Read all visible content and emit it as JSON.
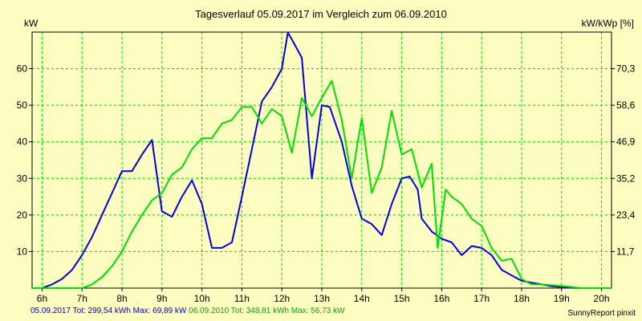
{
  "chart_data": {
    "type": "line",
    "title": "Tagesverlauf 05.09.2017 im Vergleich zum 06.09.2010",
    "ylabel_left": "kW",
    "ylabel_right": "kW/kWp [%]",
    "x_tick_labels": [
      "6h",
      "7h",
      "8h",
      "9h",
      "10h",
      "11h",
      "12h",
      "13h",
      "14h",
      "15h",
      "16h",
      "17h",
      "18h",
      "19h",
      "20h"
    ],
    "x_ticks": [
      6,
      7,
      8,
      9,
      10,
      11,
      12,
      13,
      14,
      15,
      16,
      17,
      18,
      19,
      20
    ],
    "xlim": [
      5.75,
      20.25
    ],
    "ylim": [
      0,
      70
    ],
    "y_ticks": [
      10,
      20,
      30,
      40,
      50,
      60
    ],
    "y_tick_labels": [
      "10",
      "20",
      "30",
      "40",
      "50",
      "60"
    ],
    "y2_ticks": [
      10,
      20,
      30,
      40,
      50,
      60
    ],
    "y2_tick_labels": [
      "11,7",
      "23,4",
      "35,2",
      "46,9",
      "58,6",
      "70,3"
    ],
    "grid": true,
    "series": [
      {
        "name": "05.09.2017",
        "color": "#0000dd",
        "x": [
          5.75,
          6.0,
          6.25,
          6.5,
          6.75,
          7.0,
          7.25,
          7.5,
          7.75,
          8.0,
          8.25,
          8.5,
          8.75,
          9.0,
          9.25,
          9.5,
          9.75,
          10.0,
          10.25,
          10.5,
          10.75,
          11.0,
          11.25,
          11.5,
          11.75,
          12.0,
          12.15,
          12.25,
          12.5,
          12.75,
          13.0,
          13.2,
          13.5,
          13.75,
          14.0,
          14.25,
          14.5,
          14.75,
          15.0,
          15.2,
          15.4,
          15.5,
          15.75,
          16.0,
          16.25,
          16.5,
          16.75,
          17.0,
          17.25,
          17.5,
          17.75,
          18.0,
          18.25,
          18.5,
          18.75,
          19.0,
          19.25,
          19.5,
          19.75,
          20.0,
          20.25
        ],
        "values": [
          0,
          0,
          1,
          2.5,
          5,
          9,
          14,
          20,
          26,
          32,
          32,
          36.5,
          40.5,
          21,
          19.5,
          25,
          29.5,
          23,
          11,
          11,
          12.5,
          25,
          38,
          51,
          55,
          60,
          69.9,
          68,
          63,
          30,
          50,
          49.5,
          40,
          28,
          19,
          17.5,
          14.5,
          23,
          30,
          30.5,
          27,
          19,
          15.5,
          13.5,
          12.5,
          9,
          11.5,
          11,
          9,
          5,
          3.5,
          2,
          1.5,
          1,
          0.5,
          0.3,
          0.1,
          0,
          0,
          0,
          0
        ]
      },
      {
        "name": "06.09.2010",
        "color": "#00dd00",
        "x": [
          5.75,
          6.25,
          6.5,
          6.75,
          7.0,
          7.25,
          7.5,
          7.75,
          8.0,
          8.25,
          8.5,
          8.75,
          9.0,
          9.25,
          9.5,
          9.75,
          10.0,
          10.25,
          10.5,
          10.75,
          11.0,
          11.25,
          11.5,
          11.75,
          12.0,
          12.25,
          12.5,
          12.75,
          13.0,
          13.25,
          13.5,
          13.75,
          14.0,
          14.25,
          14.5,
          14.75,
          15.0,
          15.25,
          15.5,
          15.75,
          15.9,
          16.1,
          16.25,
          16.5,
          16.75,
          17.0,
          17.25,
          17.5,
          17.75,
          18.0,
          18.25,
          18.5,
          18.75,
          19.0,
          19.25,
          19.5,
          19.75,
          20.0,
          20.25
        ],
        "values": [
          0,
          0,
          0,
          0,
          0,
          1,
          3,
          6,
          10,
          15.5,
          20,
          24,
          26,
          31,
          33,
          38,
          41,
          41,
          45,
          46,
          49.5,
          49.5,
          45,
          49,
          47,
          37,
          52,
          47,
          52,
          56.7,
          46,
          30,
          46.5,
          26,
          33,
          48.5,
          36.5,
          38,
          27.5,
          34,
          11,
          27,
          25,
          23,
          19,
          17,
          11,
          7.5,
          8,
          2.5,
          1,
          1,
          0.8,
          0.6,
          0.3,
          0,
          0,
          0,
          0
        ]
      }
    ]
  },
  "footer": {
    "blue_text": "05.09.2017 Tot: 299,54 kWh Max: 69,89 kW",
    "green_text": "06.09.2010 Tot: 348,81 kWh Max: 56,73 kW",
    "credit": "SunnyReport pinxit"
  },
  "colors": {
    "background": "#fdfdc2",
    "grid": "#00cc00",
    "axis": "#000000",
    "footer_blue": "#0000cc",
    "footer_green": "#00aa00"
  }
}
